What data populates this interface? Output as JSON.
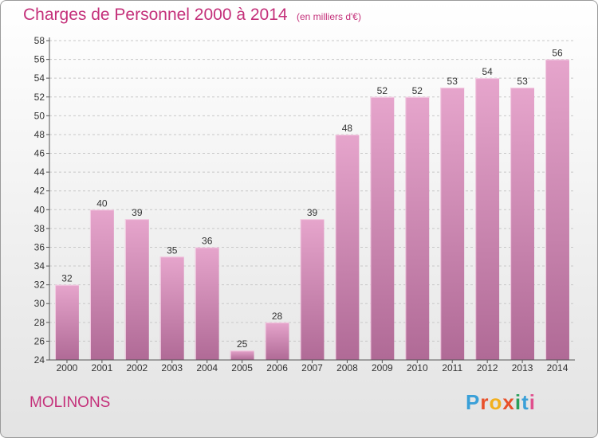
{
  "header": {
    "title": "Charges de Personnel 2000 à 2014",
    "subtitle": "(en milliers d'€)"
  },
  "footer": {
    "commune": "MOLINONS",
    "logo_text": "Proxiti",
    "logo_colors": [
      "#3aa0d8",
      "#e8502a",
      "#f2b01e",
      "#e8502a",
      "#2a9f5a",
      "#3aa0d8",
      "#e04f8d"
    ]
  },
  "colors": {
    "title": "#c4307a",
    "bar_top": "#e6a5cc",
    "bar_bottom": "#b06a96",
    "bar_edge": "#f3cfe4",
    "grid": "#c8c8c8",
    "axis": "#555555"
  },
  "chart_data": {
    "type": "bar",
    "title": "Charges de Personnel 2000 à 2014",
    "subtitle": "(en milliers d'€)",
    "categories": [
      "2000",
      "2001",
      "2002",
      "2003",
      "2004",
      "2005",
      "2006",
      "2007",
      "2008",
      "2009",
      "2010",
      "2011",
      "2012",
      "2013",
      "2014"
    ],
    "values": [
      32,
      40,
      39,
      35,
      36,
      25,
      28,
      39,
      48,
      52,
      52,
      53,
      54,
      53,
      56
    ],
    "ylim": [
      24,
      58
    ],
    "ytick_step": 2,
    "grid": true,
    "xlabel": "",
    "ylabel": ""
  }
}
